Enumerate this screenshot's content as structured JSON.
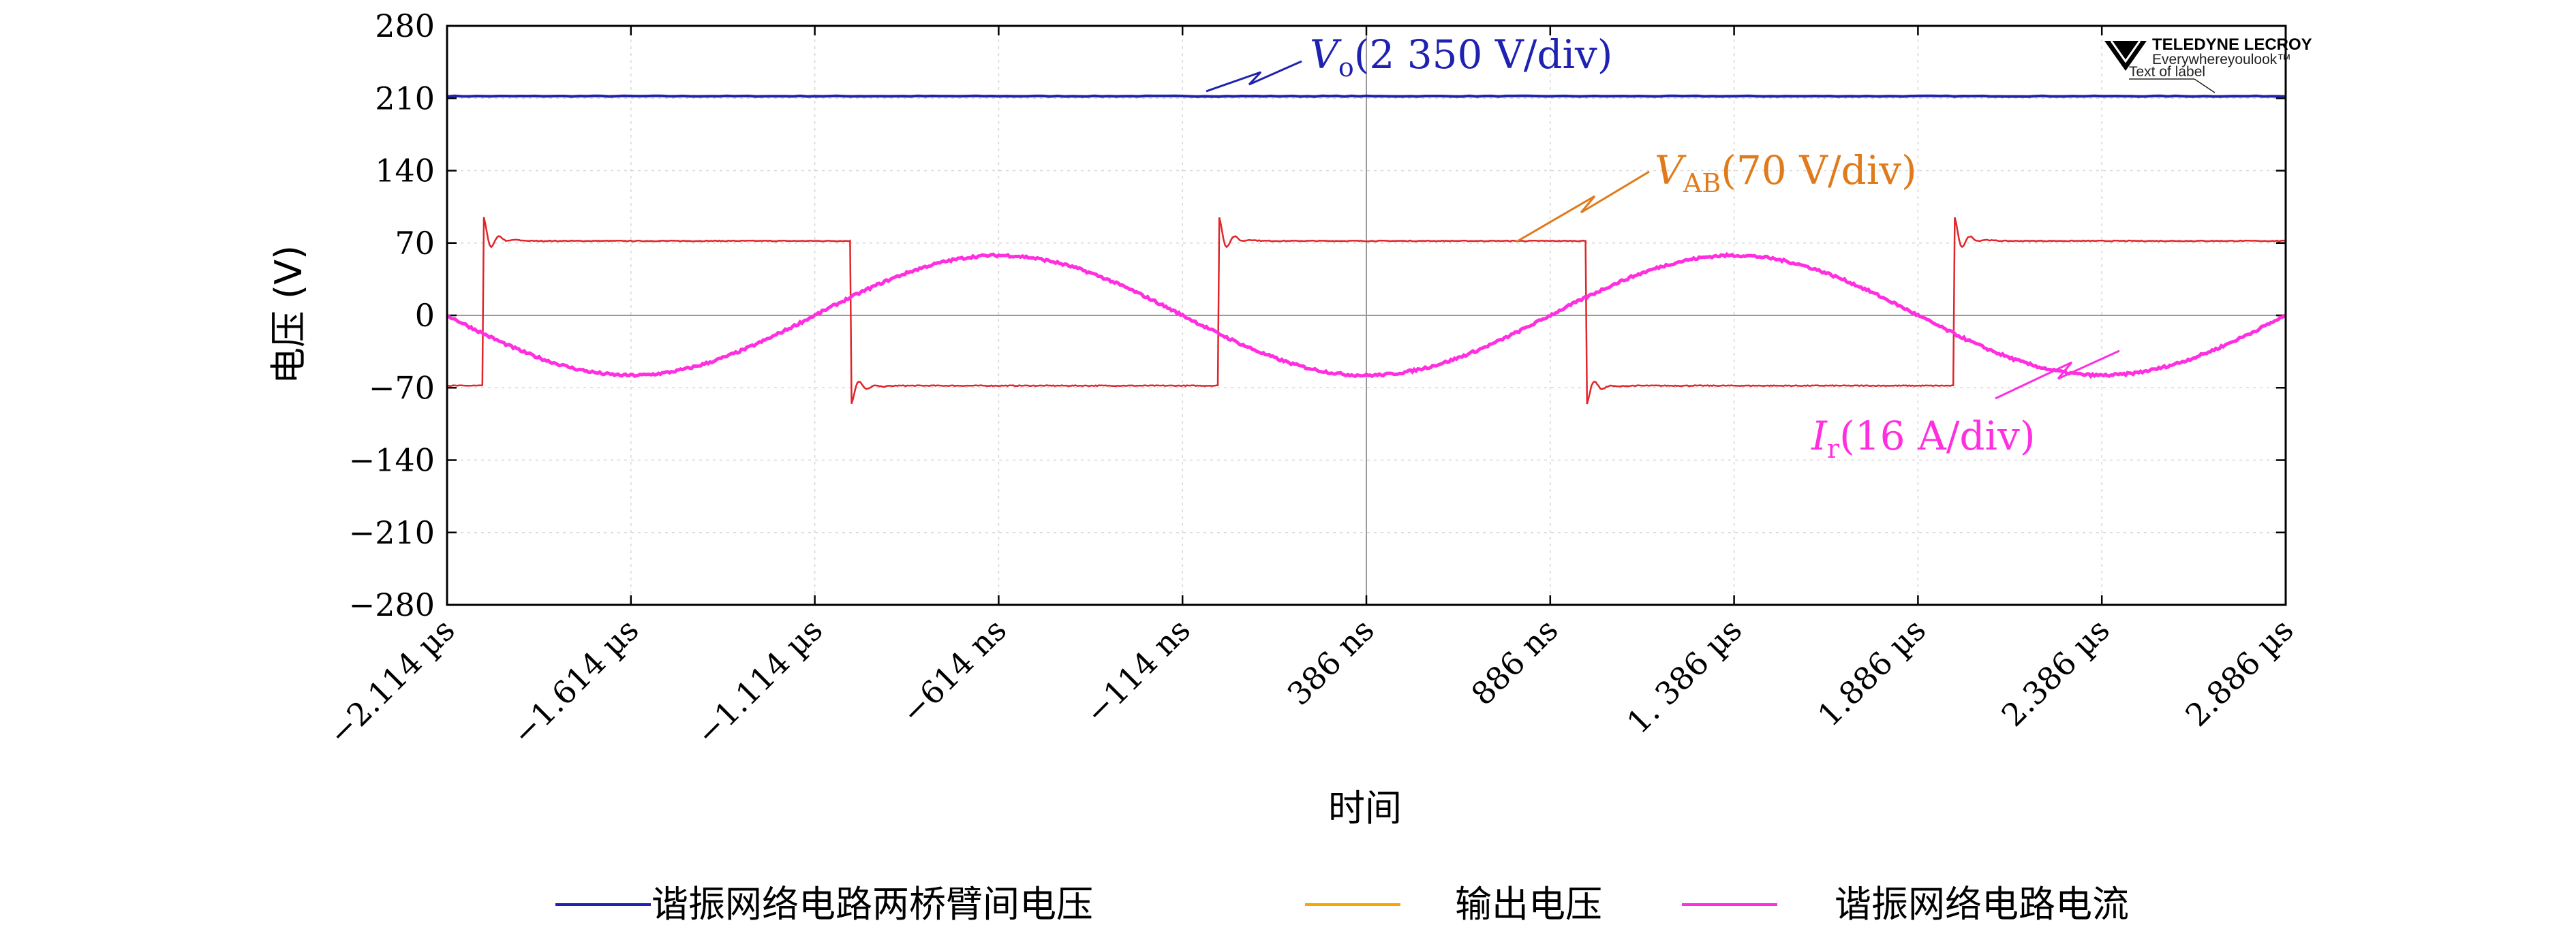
{
  "chart_data": {
    "type": "line",
    "ylabel": "电压 (V)",
    "xlabel": "时间",
    "ylim": [
      -280,
      280
    ],
    "yticks": [
      "280",
      "210",
      "140",
      "70",
      "0",
      "−70",
      "−140",
      "−210",
      "−280"
    ],
    "xlim_ns": [
      -2114,
      2886
    ],
    "xticks": [
      "−2.114 µs",
      "−1.614 µs",
      "−1.114 µs",
      "−614 ns",
      "−114 ns",
      "386 ns",
      "886 ns",
      "1. 386 µs",
      "1.886 µs",
      "2.386 µs",
      "2.886 µs"
    ],
    "grid": true,
    "series": [
      {
        "name": "谐振网络电路两桥臂间电压",
        "color": "#1f22b0",
        "shape": "dc",
        "level": 212
      },
      {
        "name": "输出电压",
        "color": "#f2a900",
        "shape": "none"
      },
      {
        "name": "谐振网络电路电流",
        "color": "#ff2fe0",
        "shape": "sine",
        "amplitude": 58,
        "period_ns": 2000,
        "peak_x_ns": -614
      }
    ],
    "square_wave": {
      "color": "#e0262a",
      "high": 72,
      "low": -68,
      "overshoot_high": 92,
      "overshoot_low": -83,
      "rising_edges_ns": [
        -2014,
        -14,
        1986
      ],
      "falling_edges_ns": [
        -1014,
        986
      ]
    },
    "annotations": {
      "vo": {
        "var": "V",
        "sub": "o",
        "text": "(2 350 V/div)",
        "color": "#1f22b0"
      },
      "vab": {
        "var": "V",
        "sub": "AB",
        "text": "(70 V/div)",
        "color": "#e07a1a"
      },
      "ir": {
        "var": "I",
        "sub": "r",
        "text": "(16 A/div)",
        "color": "#ff2fe0"
      }
    },
    "logo": {
      "brand": "TELEDYNE LECROY",
      "slogan": "Everywhereyoulook",
      "tm": "™",
      "caption": "Text of label"
    },
    "legend_position": "bottom"
  }
}
